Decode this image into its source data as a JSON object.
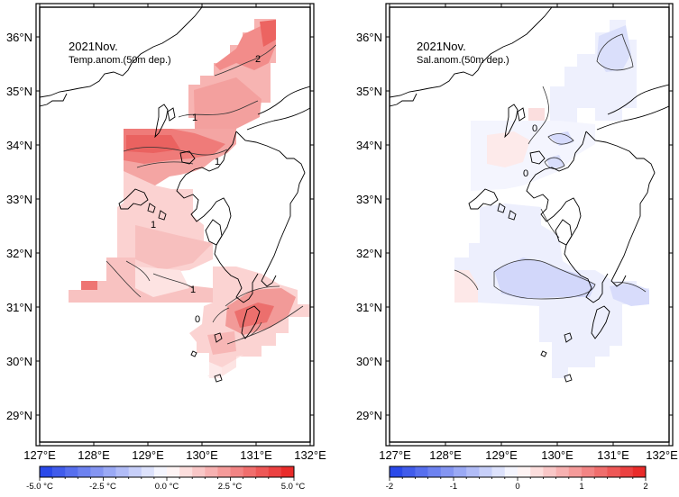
{
  "maps": [
    {
      "id": "temp",
      "title": "2021Nov.",
      "subtitle": "Temp.anom.(50m dep.)",
      "x_ticks": [
        "127°E",
        "128°E",
        "129°E",
        "130°E",
        "131°E",
        "132°E"
      ],
      "y_ticks": [
        "36°N",
        "35°N",
        "34°N",
        "33°N",
        "32°N",
        "31°N",
        "30°N",
        "29°N"
      ],
      "colorbar_labels": [
        "-5.0 °C",
        "-2.5 °C",
        "0.0 °C",
        "2.5 °C",
        "5.0 °C"
      ],
      "contour_labels": [
        "2",
        "1",
        "1",
        "1",
        "1",
        "0"
      ],
      "colormap": "blue-white-red"
    },
    {
      "id": "sal",
      "title": "2021Nov.",
      "subtitle": "Sal.anom.(50m dep.)",
      "x_ticks": [
        "127°E",
        "128°E",
        "129°E",
        "130°E",
        "131°E",
        "132°E"
      ],
      "y_ticks": [
        "36°N",
        "35°N",
        "34°N",
        "33°N",
        "32°N",
        "31°N",
        "30°N",
        "29°N"
      ],
      "colorbar_labels": [
        "-2",
        "-1",
        "0",
        "1",
        "2"
      ],
      "contour_labels": [
        "0",
        "0"
      ],
      "colormap": "blue-white-red"
    }
  ],
  "colors": {
    "neg_strong": "#1f3fe8",
    "neutral": "#ffffff",
    "pos_strong": "#e8201f",
    "land_line": "#000000"
  }
}
